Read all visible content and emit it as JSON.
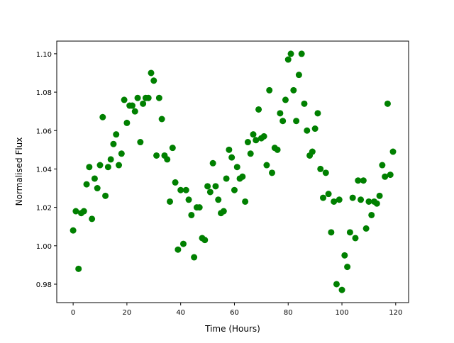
{
  "chart_data": {
    "type": "scatter",
    "title": "",
    "xlabel": "Time (Hours)",
    "ylabel": "Normalised Flux",
    "xlim": [
      -6.1,
      124.8
    ],
    "ylim": [
      0.9704,
      1.1066
    ],
    "xticks": [
      0,
      20,
      40,
      60,
      80,
      100,
      120
    ],
    "xtick_labels": [
      "0",
      "20",
      "40",
      "60",
      "80",
      "100",
      "120"
    ],
    "yticks": [
      0.98,
      1.0,
      1.02,
      1.04,
      1.06,
      1.08,
      1.1
    ],
    "ytick_labels": [
      "0.98",
      "1.00",
      "1.02",
      "1.04",
      "1.06",
      "1.08",
      "1.10"
    ],
    "grid": false,
    "marker_color": "#008000",
    "series": [
      {
        "x": [
          0,
          1,
          2,
          3,
          4,
          5,
          6,
          7,
          8,
          9,
          10,
          11,
          12,
          13,
          14,
          15,
          16,
          17,
          18,
          19,
          20,
          21,
          22,
          23,
          24,
          25,
          26,
          27,
          28,
          29,
          30,
          31,
          32,
          33,
          34,
          35,
          36,
          37,
          38,
          39,
          40,
          41,
          42,
          43,
          44,
          45,
          46,
          47,
          48,
          49,
          50,
          51,
          52,
          53,
          54,
          55,
          56,
          57,
          58,
          59,
          60,
          61,
          62,
          63,
          64,
          65,
          66,
          67,
          68,
          69,
          70,
          71,
          72,
          73,
          74,
          75,
          76,
          77,
          78,
          79,
          80,
          81,
          82,
          83,
          84,
          85,
          86,
          87,
          88,
          89,
          90,
          91,
          92,
          93,
          94,
          95,
          96,
          97,
          98,
          99,
          100,
          101,
          102,
          103,
          104,
          105,
          106,
          107,
          108,
          109,
          110,
          111,
          112,
          113,
          114,
          115,
          116,
          117,
          118,
          119
        ],
        "y": [
          1.008,
          1.018,
          0.988,
          1.017,
          1.018,
          1.032,
          1.041,
          1.014,
          1.035,
          1.03,
          1.042,
          1.067,
          1.026,
          1.041,
          1.045,
          1.053,
          1.058,
          1.042,
          1.048,
          1.076,
          1.064,
          1.073,
          1.073,
          1.07,
          1.077,
          1.054,
          1.074,
          1.077,
          1.077,
          1.09,
          1.086,
          1.047,
          1.077,
          1.066,
          1.047,
          1.045,
          1.023,
          1.051,
          1.033,
          0.998,
          1.029,
          1.001,
          1.029,
          1.024,
          1.016,
          0.994,
          1.02,
          1.02,
          1.004,
          1.003,
          1.031,
          1.028,
          1.043,
          1.031,
          1.024,
          1.017,
          1.018,
          1.035,
          1.05,
          1.046,
          1.029,
          1.041,
          1.035,
          1.036,
          1.023,
          1.054,
          1.048,
          1.058,
          1.055,
          1.071,
          1.056,
          1.057,
          1.042,
          1.081,
          1.038,
          1.051,
          1.05,
          1.069,
          1.065,
          1.076,
          1.097,
          1.1,
          1.081,
          1.065,
          1.089,
          1.1,
          1.074,
          1.06,
          1.047,
          1.049,
          1.061,
          1.069,
          1.04,
          1.025,
          1.038,
          1.027,
          1.007,
          1.023,
          0.98,
          1.024,
          0.977,
          0.995,
          0.989,
          1.007,
          1.025,
          1.004,
          1.034,
          1.024,
          1.034,
          1.009,
          1.023,
          1.016,
          1.023,
          1.022,
          1.026,
          1.042,
          1.036,
          1.074,
          1.037,
          1.049
        ]
      }
    ]
  }
}
